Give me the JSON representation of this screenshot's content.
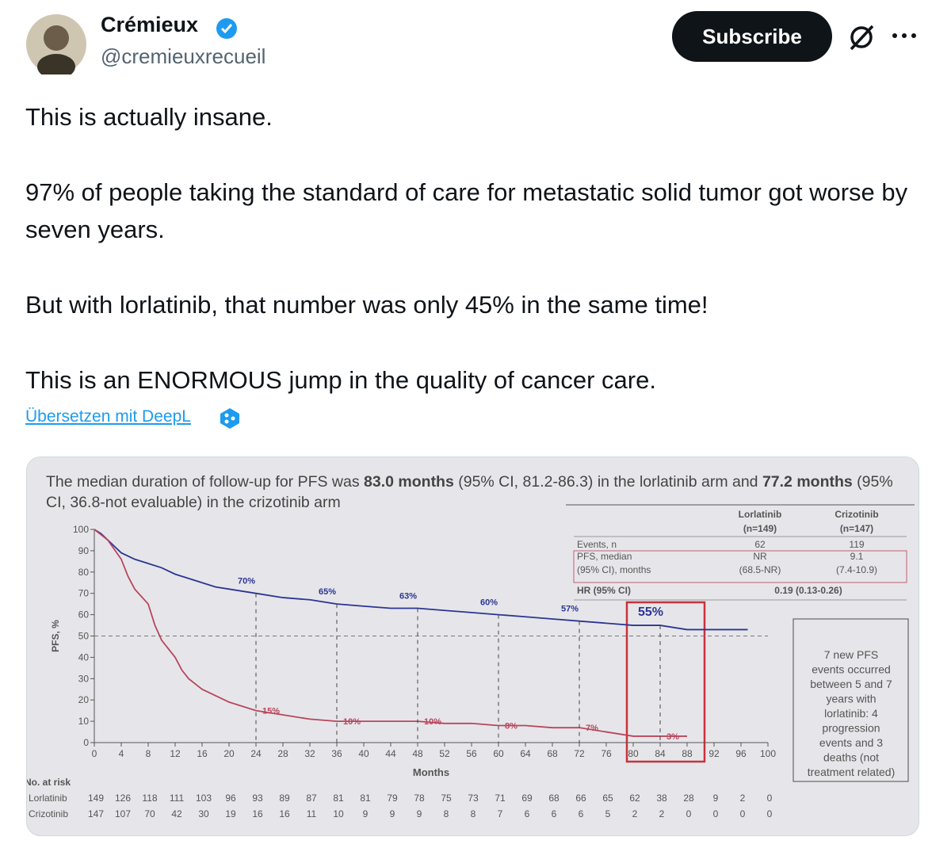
{
  "author": {
    "name": "Crémieux",
    "handle": "@cremieuxrecueil"
  },
  "actions": {
    "subscribe": "Subscribe"
  },
  "tweet": {
    "paragraphs": [
      "This is actually insane.",
      "97% of people taking the standard of care for metastatic solid tumor got worse by seven years.",
      "But with lorlatinib, that number was only 45% in the same time!",
      "This is an ENORMOUS jump in the quality of cancer care."
    ],
    "translate": "Übersetzen mit DeepL"
  },
  "image": {
    "caption": [
      {
        "text": "The median duration of follow-up for PFS was ",
        "bold": false
      },
      {
        "text": "83.0 months",
        "bold": true
      },
      {
        "text": " (95% CI, 81.2-86.3) in the lorlatinib arm and ",
        "bold": false
      },
      {
        "text": "77.2 months",
        "bold": true
      },
      {
        "text": " (95% CI, 36.8-not evaluable) in the crizotinib arm",
        "bold": false
      }
    ],
    "table": {
      "headers": [
        [
          "Lorlatinib",
          "(n=149)"
        ],
        [
          "Crizotinib",
          "(n=147)"
        ]
      ],
      "rows": [
        {
          "label": [
            "Events, n"
          ],
          "cells": [
            [
              "62"
            ],
            [
              "119"
            ]
          ]
        },
        {
          "label": [
            "PFS, median",
            "(95% CI), months"
          ],
          "cells": [
            [
              "NR",
              "(68.5-NR)"
            ],
            [
              "9.1",
              "(7.4-10.9)"
            ]
          ]
        },
        {
          "label": [
            "HR (95% CI)"
          ],
          "cells": [
            [
              "0.19 (0.13-0.26)"
            ]
          ]
        }
      ]
    },
    "note": [
      "7 new PFS",
      "events occurred",
      "between 5 and 7",
      "years with",
      "lorlatinib: 4",
      "progression",
      "events and 3",
      "deaths (not",
      "treatment related)"
    ],
    "at_risk": {
      "title": "No. at risk",
      "rows": [
        {
          "label": "Lorlatinib",
          "values": [
            149,
            126,
            118,
            111,
            103,
            96,
            93,
            89,
            87,
            81,
            81,
            79,
            78,
            75,
            73,
            71,
            69,
            68,
            66,
            65,
            62,
            38,
            28,
            9,
            2,
            0
          ]
        },
        {
          "label": "Crizotinib",
          "values": [
            147,
            107,
            70,
            42,
            30,
            19,
            16,
            16,
            11,
            10,
            9,
            9,
            9,
            8,
            8,
            7,
            6,
            6,
            6,
            5,
            2,
            2,
            0,
            0,
            0,
            0
          ]
        }
      ]
    }
  },
  "chart_data": {
    "type": "line",
    "x_label": "Months",
    "y_label": "PFS, %",
    "xlim": [
      0,
      100
    ],
    "ylim": [
      0,
      100
    ],
    "xticks": [
      0,
      4,
      8,
      12,
      16,
      20,
      24,
      28,
      32,
      36,
      40,
      44,
      48,
      52,
      56,
      60,
      64,
      68,
      72,
      76,
      80,
      84,
      88,
      92,
      96,
      100
    ],
    "yticks": [
      0,
      10,
      20,
      30,
      40,
      50,
      60,
      70,
      80,
      90,
      100
    ],
    "hline": 50,
    "series": [
      {
        "color": "#2c3592",
        "x": [
          0,
          1,
          2,
          3,
          4,
          6,
          8,
          10,
          12,
          14,
          16,
          18,
          20,
          24,
          28,
          32,
          36,
          40,
          44,
          48,
          52,
          56,
          60,
          64,
          68,
          72,
          76,
          80,
          84,
          88,
          92,
          97
        ],
        "values": [
          100,
          98,
          95,
          92,
          89,
          86,
          84,
          82,
          79,
          77,
          75,
          73,
          72,
          70,
          68,
          67,
          65,
          64,
          63,
          63,
          62,
          61,
          60,
          59,
          58,
          57,
          56,
          55,
          55,
          53,
          53,
          53
        ]
      },
      {
        "color": "#b8465c",
        "x": [
          0,
          2,
          4,
          5,
          6,
          8,
          9,
          10,
          12,
          13,
          14,
          16,
          18,
          20,
          22,
          24,
          28,
          32,
          36,
          40,
          48,
          52,
          56,
          60,
          64,
          68,
          72,
          76,
          80,
          84,
          88
        ],
        "values": [
          100,
          95,
          86,
          78,
          72,
          65,
          55,
          48,
          40,
          34,
          30,
          25,
          22,
          19,
          17,
          15,
          13,
          11,
          10,
          10,
          10,
          9,
          9,
          8,
          8,
          7,
          7,
          5,
          3,
          3,
          3
        ]
      }
    ],
    "annotations": [
      {
        "series": 0,
        "x": 24,
        "value": 70,
        "label": "70%"
      },
      {
        "series": 0,
        "x": 36,
        "value": 65,
        "label": "65%"
      },
      {
        "series": 0,
        "x": 48,
        "value": 63,
        "label": "63%"
      },
      {
        "series": 0,
        "x": 60,
        "value": 60,
        "label": "60%"
      },
      {
        "series": 0,
        "x": 72,
        "value": 57,
        "label": "57%"
      },
      {
        "series": 0,
        "x": 84,
        "value": 55,
        "label": "55%"
      },
      {
        "series": 1,
        "x": 24,
        "value": 15,
        "label": "15%"
      },
      {
        "series": 1,
        "x": 36,
        "value": 10,
        "label": "10%"
      },
      {
        "series": 1,
        "x": 48,
        "value": 10,
        "label": "10%"
      },
      {
        "series": 1,
        "x": 60,
        "value": 8,
        "label": "8%"
      },
      {
        "series": 1,
        "x": 72,
        "value": 7,
        "label": "7%"
      },
      {
        "series": 1,
        "x": 84,
        "value": 3,
        "label": "3%"
      }
    ]
  }
}
